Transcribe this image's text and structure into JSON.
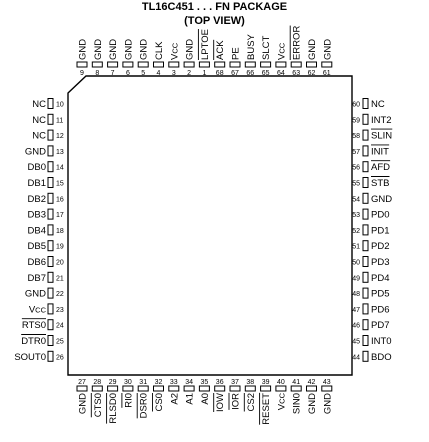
{
  "header": {
    "title": "TL16C451 . . . FN PACKAGE",
    "subtitle": "(TOP VIEW)"
  },
  "pins": {
    "top": [
      {
        "num": "9",
        "label": "GND"
      },
      {
        "num": "8",
        "label": "GND"
      },
      {
        "num": "7",
        "label": "GND"
      },
      {
        "num": "6",
        "label": "GND"
      },
      {
        "num": "5",
        "label": "GND"
      },
      {
        "num": "4",
        "label": "CLK"
      },
      {
        "num": "3",
        "label": "VCC"
      },
      {
        "num": "2",
        "label": "GND"
      },
      {
        "num": "1",
        "label": "LPTOE",
        "overline": true
      },
      {
        "num": "68",
        "label": "ACK",
        "overline": true
      },
      {
        "num": "67",
        "label": "PE"
      },
      {
        "num": "66",
        "label": "BUSY"
      },
      {
        "num": "65",
        "label": "SLCT"
      },
      {
        "num": "64",
        "label": "VCC"
      },
      {
        "num": "63",
        "label": "ERROR",
        "overline": true
      },
      {
        "num": "62",
        "label": "GND"
      },
      {
        "num": "61",
        "label": "GND"
      }
    ],
    "left": [
      {
        "num": "10",
        "label": "NC"
      },
      {
        "num": "11",
        "label": "NC"
      },
      {
        "num": "12",
        "label": "NC"
      },
      {
        "num": "13",
        "label": "GND"
      },
      {
        "num": "14",
        "label": "DB0"
      },
      {
        "num": "15",
        "label": "DB1"
      },
      {
        "num": "16",
        "label": "DB2"
      },
      {
        "num": "17",
        "label": "DB3"
      },
      {
        "num": "18",
        "label": "DB4"
      },
      {
        "num": "19",
        "label": "DB5"
      },
      {
        "num": "20",
        "label": "DB6"
      },
      {
        "num": "21",
        "label": "DB7"
      },
      {
        "num": "22",
        "label": "GND"
      },
      {
        "num": "23",
        "label": "VCC"
      },
      {
        "num": "24",
        "label": "RTS0",
        "overline": true
      },
      {
        "num": "25",
        "label": "DTR0",
        "overline": true
      },
      {
        "num": "26",
        "label": "SOUT0"
      }
    ],
    "right": [
      {
        "num": "60",
        "label": "NC"
      },
      {
        "num": "59",
        "label": "INT2"
      },
      {
        "num": "58",
        "label": "SLIN",
        "overline": true
      },
      {
        "num": "57",
        "label": "INIT",
        "overline": true
      },
      {
        "num": "56",
        "label": "AFD",
        "overline": true
      },
      {
        "num": "55",
        "label": "STB",
        "overline": true
      },
      {
        "num": "54",
        "label": "GND"
      },
      {
        "num": "53",
        "label": "PD0"
      },
      {
        "num": "52",
        "label": "PD1"
      },
      {
        "num": "51",
        "label": "PD2"
      },
      {
        "num": "50",
        "label": "PD3"
      },
      {
        "num": "49",
        "label": "PD4"
      },
      {
        "num": "48",
        "label": "PD5"
      },
      {
        "num": "47",
        "label": "PD6"
      },
      {
        "num": "46",
        "label": "PD7"
      },
      {
        "num": "45",
        "label": "INT0"
      },
      {
        "num": "44",
        "label": "BDO"
      }
    ],
    "bottom": [
      {
        "num": "27",
        "label": "GND"
      },
      {
        "num": "28",
        "label": "CTS0",
        "overline": true
      },
      {
        "num": "29",
        "label": "RLSD0",
        "overline": true
      },
      {
        "num": "30",
        "label": "RI0",
        "overline": true
      },
      {
        "num": "31",
        "label": "DSR0",
        "overline": true
      },
      {
        "num": "32",
        "label": "CS0",
        "overline": true
      },
      {
        "num": "33",
        "label": "A2"
      },
      {
        "num": "34",
        "label": "A1"
      },
      {
        "num": "35",
        "label": "A0"
      },
      {
        "num": "36",
        "label": "IOW",
        "overline": true
      },
      {
        "num": "37",
        "label": "IOR",
        "overline": true
      },
      {
        "num": "38",
        "label": "CS2",
        "overline": true
      },
      {
        "num": "39",
        "label": "RESET",
        "overline": true
      },
      {
        "num": "40",
        "label": "VCC"
      },
      {
        "num": "41",
        "label": "SIN0"
      },
      {
        "num": "42",
        "label": "GND"
      },
      {
        "num": "43",
        "label": "GND"
      }
    ]
  }
}
